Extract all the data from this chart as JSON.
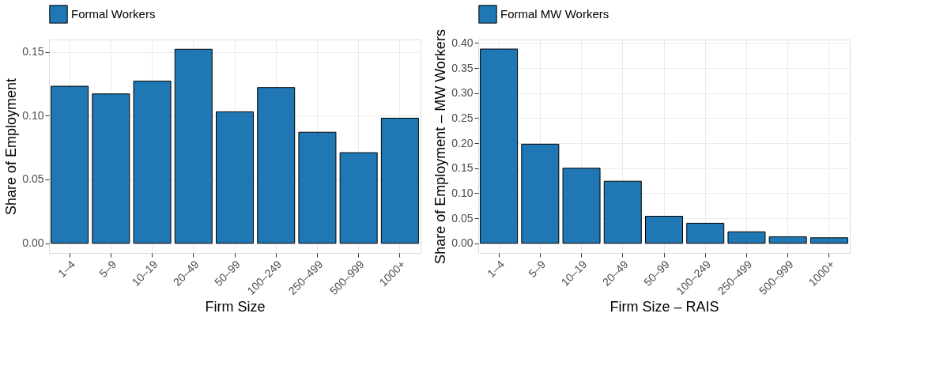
{
  "chart_data": [
    {
      "type": "bar",
      "categories": [
        "1–4",
        "5–9",
        "10–19",
        "20–49",
        "50–99",
        "100–249",
        "250–499",
        "500–999",
        "1000+"
      ],
      "xlabel": "Firm Size",
      "ylabel": "Share of Employment",
      "ylim": [
        -0.0076,
        0.1596
      ],
      "yticks": [
        {
          "value": 0,
          "label": "0.00"
        },
        {
          "value": 0.05,
          "label": "0.05"
        },
        {
          "value": 0.1,
          "label": "0.10"
        },
        {
          "value": 0.15,
          "label": "0.15"
        }
      ],
      "grid": true,
      "legend": "top",
      "series": [
        {
          "name": "Formal Workers",
          "color": "#1f77b4",
          "values": [
            0.123,
            0.117,
            0.127,
            0.152,
            0.103,
            0.122,
            0.087,
            0.071,
            0.098
          ]
        }
      ]
    },
    {
      "type": "bar",
      "categories": [
        "1–4",
        "5–9",
        "10–19",
        "20–49",
        "50–99",
        "100–249",
        "250–499",
        "500–999",
        "1000+"
      ],
      "xlabel": "Firm Size – RAIS",
      "ylabel": "Share of Employment – MW Workers",
      "ylim": [
        -0.0194,
        0.407
      ],
      "yticks": [
        {
          "value": 0,
          "label": "0.00"
        },
        {
          "value": 0.05,
          "label": "0.05"
        },
        {
          "value": 0.1,
          "label": "0.10"
        },
        {
          "value": 0.15,
          "label": "0.15"
        },
        {
          "value": 0.2,
          "label": "0.20"
        },
        {
          "value": 0.25,
          "label": "0.25"
        },
        {
          "value": 0.3,
          "label": "0.30"
        },
        {
          "value": 0.35,
          "label": "0.35"
        },
        {
          "value": 0.4,
          "label": "0.40"
        }
      ],
      "grid": true,
      "legend": "top",
      "series": [
        {
          "name": "Formal MW Workers",
          "color": "#1f77b4",
          "values": [
            0.388,
            0.198,
            0.15,
            0.124,
            0.054,
            0.04,
            0.023,
            0.013,
            0.011
          ]
        }
      ]
    }
  ]
}
